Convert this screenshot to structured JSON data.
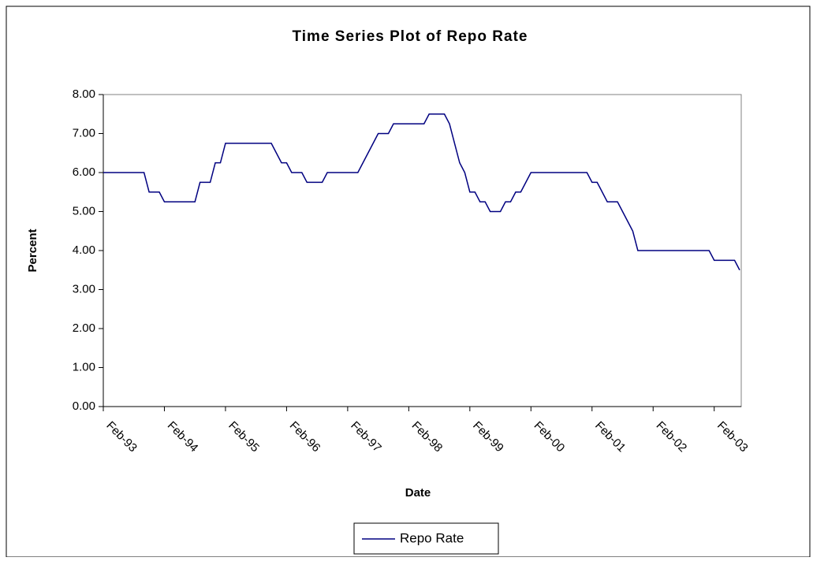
{
  "chart_data": {
    "type": "line",
    "title": "Time Series Plot of Repo Rate",
    "xlabel": "Date",
    "ylabel": "Percent",
    "categories": [
      "Feb-93",
      null,
      null,
      null,
      null,
      null,
      null,
      null,
      null,
      null,
      null,
      null,
      "Feb-94",
      null,
      null,
      null,
      null,
      null,
      null,
      null,
      null,
      null,
      null,
      null,
      "Feb-95",
      null,
      null,
      null,
      null,
      null,
      null,
      null,
      null,
      null,
      null,
      null,
      "Feb-96",
      null,
      null,
      null,
      null,
      null,
      null,
      null,
      null,
      null,
      null,
      null,
      "Feb-97",
      null,
      null,
      null,
      null,
      null,
      null,
      null,
      null,
      null,
      null,
      null,
      "Feb-98",
      null,
      null,
      null,
      null,
      null,
      null,
      null,
      null,
      null,
      null,
      null,
      "Feb-99",
      null,
      null,
      null,
      null,
      null,
      null,
      null,
      null,
      null,
      null,
      null,
      "Feb-00",
      null,
      null,
      null,
      null,
      null,
      null,
      null,
      null,
      null,
      null,
      null,
      "Feb-01",
      null,
      null,
      null,
      null,
      null,
      null,
      null,
      null,
      null,
      null,
      null,
      "Feb-02",
      null,
      null,
      null,
      null,
      null,
      null,
      null,
      null,
      null,
      null,
      null,
      "Feb-03",
      null,
      null,
      null,
      null,
      null
    ],
    "series": [
      {
        "name": "Repo Rate",
        "color": "#000080",
        "values": [
          6.0,
          6.0,
          6.0,
          6.0,
          6.0,
          6.0,
          6.0,
          6.0,
          6.0,
          5.5,
          5.5,
          5.5,
          5.25,
          5.25,
          5.25,
          5.25,
          5.25,
          5.25,
          5.25,
          5.75,
          5.75,
          5.75,
          6.25,
          6.25,
          6.75,
          6.75,
          6.75,
          6.75,
          6.75,
          6.75,
          6.75,
          6.75,
          6.75,
          6.75,
          6.5,
          6.25,
          6.25,
          6.0,
          6.0,
          6.0,
          5.75,
          5.75,
          5.75,
          5.75,
          6.0,
          6.0,
          6.0,
          6.0,
          6.0,
          6.0,
          6.0,
          6.25,
          6.5,
          6.75,
          7.0,
          7.0,
          7.0,
          7.25,
          7.25,
          7.25,
          7.25,
          7.25,
          7.25,
          7.25,
          7.5,
          7.5,
          7.5,
          7.5,
          7.25,
          6.75,
          6.25,
          6.0,
          5.5,
          5.5,
          5.25,
          5.25,
          5.0,
          5.0,
          5.0,
          5.25,
          5.25,
          5.5,
          5.5,
          5.75,
          6.0,
          6.0,
          6.0,
          6.0,
          6.0,
          6.0,
          6.0,
          6.0,
          6.0,
          6.0,
          6.0,
          6.0,
          5.75,
          5.75,
          5.5,
          5.25,
          5.25,
          5.25,
          5.0,
          4.75,
          4.5,
          4.0,
          4.0,
          4.0,
          4.0,
          4.0,
          4.0,
          4.0,
          4.0,
          4.0,
          4.0,
          4.0,
          4.0,
          4.0,
          4.0,
          4.0,
          3.75,
          3.75,
          3.75,
          3.75,
          3.75,
          3.5
        ]
      }
    ],
    "ylim": [
      0,
      8
    ],
    "yticks": [
      {
        "value": 0,
        "label": "0.00"
      },
      {
        "value": 1,
        "label": "1.00"
      },
      {
        "value": 2,
        "label": "2.00"
      },
      {
        "value": 3,
        "label": "3.00"
      },
      {
        "value": 4,
        "label": "4.00"
      },
      {
        "value": 5,
        "label": "5.00"
      },
      {
        "value": 6,
        "label": "6.00"
      },
      {
        "value": 7,
        "label": "7.00"
      },
      {
        "value": 8,
        "label": "8.00"
      }
    ]
  }
}
